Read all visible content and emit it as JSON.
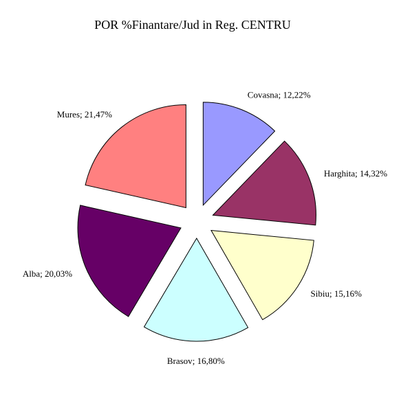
{
  "chart_data": {
    "type": "pie",
    "title": "POR %Finantare/Jud in Reg. CENTRU",
    "categories": [
      "Covasna",
      "Harghita",
      "Sibiu",
      "Brasov",
      "Alba",
      "Mures"
    ],
    "values": [
      12.22,
      14.32,
      15.16,
      16.8,
      20.03,
      21.47
    ],
    "value_labels": [
      "12,22%",
      "14,32%",
      "15,16%",
      "16,80%",
      "20,03%",
      "21,47%"
    ],
    "label_separator": "; ",
    "colors": [
      "#9999ff",
      "#993366",
      "#ffffcc",
      "#ccffff",
      "#660066",
      "#ff8080"
    ]
  }
}
